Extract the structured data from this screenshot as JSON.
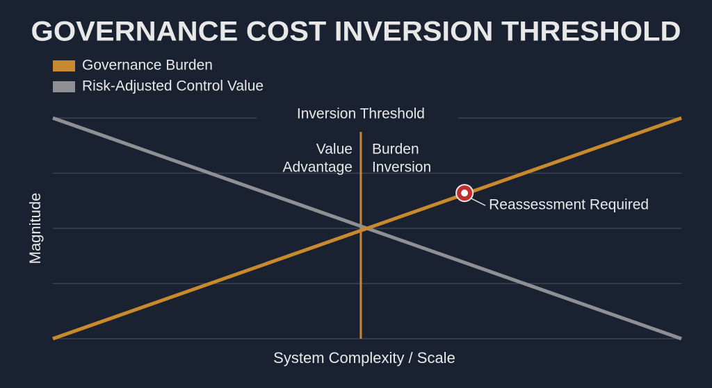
{
  "chart_data": {
    "type": "line",
    "title": "GOVERNANCE COST INVERSION THRESHOLD",
    "x_label": "System Complexity / Scale",
    "y_label": "Magnitude",
    "x": [
      0,
      1
    ],
    "xlim": [
      0,
      1
    ],
    "ylim": [
      0,
      4
    ],
    "yticks": [
      0,
      1,
      2,
      3,
      4
    ],
    "grid": true,
    "series": [
      {
        "name": "Governance Burden",
        "color": "#c98a2e",
        "values": [
          0,
          4
        ]
      },
      {
        "name": "Risk-Adjusted Control Value",
        "color": "#8e9093",
        "values": [
          4,
          0
        ]
      }
    ],
    "threshold": {
      "x": 0.49,
      "label": "Inversion Threshold",
      "color": "#c98a2e",
      "left_label": [
        "Value",
        "Advantage"
      ],
      "right_label": [
        "Burden",
        "Inversion"
      ]
    },
    "marker": {
      "x": 0.655,
      "y": 2.64,
      "label": "Reassessment Required",
      "color": "#c0302a"
    }
  }
}
